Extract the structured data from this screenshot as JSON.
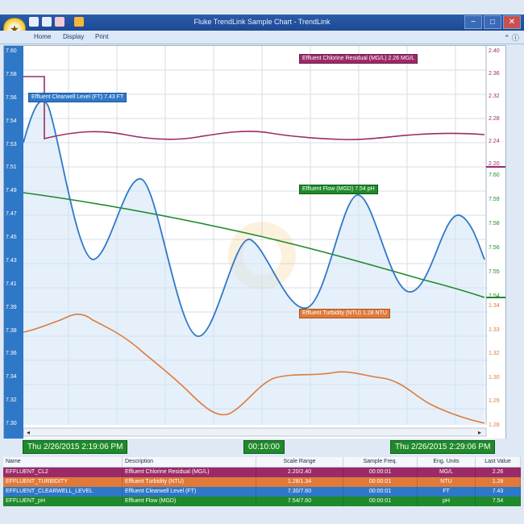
{
  "window": {
    "title": "Fluke TrendLink Sample Chart - TrendLink",
    "controls": {
      "minimize": "−",
      "maximize": "□",
      "close": "✕"
    }
  },
  "ribbon": {
    "tabs": [
      "Home",
      "Display",
      "Print"
    ],
    "help_icon": "question-icon"
  },
  "chart": {
    "left_axis": {
      "ticks": [
        "7.60",
        "7.58",
        "7.56",
        "7.54",
        "7.53",
        "7.51",
        "7.49",
        "7.47",
        "7.45",
        "7.43",
        "7.41",
        "7.39",
        "7.38",
        "7.36",
        "7.34",
        "7.32",
        "7.30"
      ],
      "color": "#2f78c8"
    },
    "right_axes": [
      {
        "ticks": [
          "2.40",
          "2.36",
          "2.32",
          "2.28",
          "2.24",
          "2.20"
        ],
        "color": "#9b2a68"
      },
      {
        "ticks": [
          "7.60",
          "7.59",
          "7.58",
          "7.56",
          "7.55",
          "7.54"
        ],
        "color": "#1f8a2a"
      },
      {
        "ticks": [
          "1.34",
          "1.33",
          "1.32",
          "1.30",
          "1.29",
          "1.28"
        ],
        "color": "#e07a3a"
      }
    ],
    "labels": {
      "chlorine": "Effluent Chlorine Residual (MG/L)  2.26 MG/L",
      "clearwell": "Effluent Clearwell Level (FT)  7.43 FT",
      "flow": "Effluent Flow (MGD)  7.54 pH",
      "turbidity": "Effluent Turbidity (NTU)  1.28 NTU"
    },
    "colors": {
      "chlorine": "#9b2a68",
      "clearwell": "#2f78c8",
      "flow": "#1f8a2a",
      "turbidity": "#e07a3a"
    }
  },
  "timebar": {
    "start": "Thu 2/26/2015   2:19:06 PM",
    "span": "00:10:00",
    "end": "Thu 2/26/2015   2:29:06 PM"
  },
  "table": {
    "headers": [
      "Name",
      "Description",
      "Scale Range",
      "Sample Freq.",
      "Eng. Units",
      "Last Value"
    ],
    "rows": [
      {
        "name": "EFFLUENT_CL2",
        "description": "Effluent Chlorine Residual (MG/L)",
        "range": "2.20/2.40",
        "freq": "00:00:01",
        "units": "MG/L",
        "last": "2.26",
        "color": "#9b2a68"
      },
      {
        "name": "EFFLUENT_TURBIDITY",
        "description": "Effluent Turbidity (NTU)",
        "range": "1.28/1.34",
        "freq": "00:00:01",
        "units": "NTU",
        "last": "1.28",
        "color": "#e07a3a"
      },
      {
        "name": "EFFLUENT_CLEARWELL_LEVEL",
        "description": "Effluent Clearwell Level (FT)",
        "range": "7.30/7.60",
        "freq": "00:00:01",
        "units": "FT",
        "last": "7.43",
        "color": "#2f78c8"
      },
      {
        "name": "EFFLUENT_pH",
        "description": "Effluent Flow (MGD)",
        "range": "7.54/7.60",
        "freq": "00:00:01",
        "units": "pH",
        "last": "7.54",
        "color": "#1f8a2a"
      }
    ]
  }
}
